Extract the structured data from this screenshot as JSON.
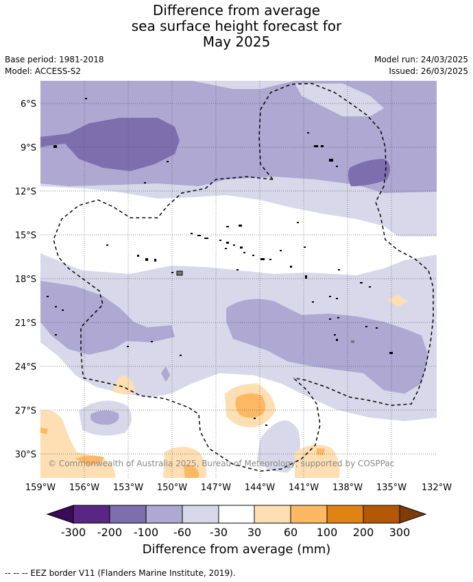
{
  "title": [
    "Difference from average",
    "sea surface height forecast for",
    "May 2025"
  ],
  "meta": {
    "base_period": "Base period: 1981-2018",
    "model": "Model: ACCESS-S2",
    "model_run": "Model run: 24/03/2025",
    "issued": "Issued: 26/03/2025"
  },
  "map": {
    "lat_labels": [
      "6°S",
      "9°S",
      "12°S",
      "15°S",
      "18°S",
      "21°S",
      "24°S",
      "27°S",
      "30°S"
    ],
    "lon_labels": [
      "159°W",
      "156°W",
      "153°W",
      "150°W",
      "147°W",
      "144°W",
      "141°W",
      "138°W",
      "135°W",
      "132°W"
    ],
    "copyright": "© Commonwealth of Australia 2025, Bureau of Meteorology, supported by COSPPac"
  },
  "colorbar": {
    "title": "Difference from average (mm)",
    "tick_labels": [
      "-300",
      "-200",
      "-100",
      "-60",
      "-30",
      "30",
      "60",
      "100",
      "200",
      "300"
    ],
    "colors": [
      "#3b0a5a",
      "#5a2686",
      "#7d6fae",
      "#aea8d2",
      "#d8d8ea",
      "#ffffff",
      "#fedfb3",
      "#fdb863",
      "#e08214",
      "#b35806",
      "#7f3b08"
    ]
  },
  "footnote": "--  --  -- EEZ border V11 (Flanders Marine Institute, 2019)."
}
